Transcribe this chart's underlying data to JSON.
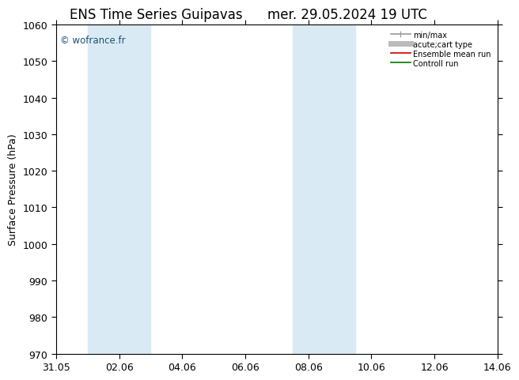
{
  "title_left": "ENS Time Series Guipavas",
  "title_right": "mer. 29.05.2024 19 UTC",
  "ylabel": "Surface Pressure (hPa)",
  "ylim": [
    970,
    1060
  ],
  "yticks": [
    970,
    980,
    990,
    1000,
    1010,
    1020,
    1030,
    1040,
    1050,
    1060
  ],
  "xtick_labels": [
    "31.05",
    "02.06",
    "04.06",
    "06.06",
    "08.06",
    "10.06",
    "12.06",
    "14.06"
  ],
  "xtick_positions": [
    0,
    2,
    4,
    6,
    8,
    10,
    12,
    14
  ],
  "xlim": [
    0,
    14
  ],
  "shaded_bands": [
    {
      "x_start": 1.0,
      "x_end": 2.0
    },
    {
      "x_start": 2.0,
      "x_end": 3.0
    },
    {
      "x_start": 7.5,
      "x_end": 8.5
    },
    {
      "x_start": 8.5,
      "x_end": 9.5
    }
  ],
  "shade_color": "#daeaf5",
  "watermark": "© wofrance.fr",
  "watermark_color": "#1a5276",
  "background_color": "#ffffff",
  "legend_entries": [
    {
      "label": "min/max",
      "color": "#999999",
      "lw": 1.2
    },
    {
      "label": "acute;cart type",
      "color": "#bbbbbb",
      "lw": 5
    },
    {
      "label": "Ensemble mean run",
      "color": "#cc0000",
      "lw": 1.2
    },
    {
      "label": "Controll run",
      "color": "#007700",
      "lw": 1.2
    }
  ],
  "title_fontsize": 12,
  "tick_fontsize": 9,
  "label_fontsize": 9
}
